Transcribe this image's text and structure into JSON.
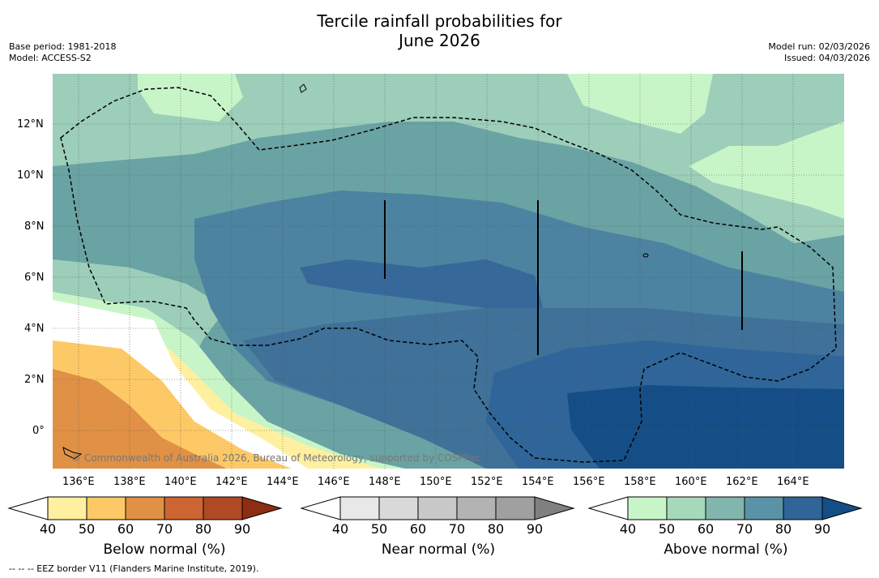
{
  "title_line1": "Tercile rainfall probabilities for",
  "title_line2": "June 2026",
  "base_period": "Base period: 1981-2018",
  "model": "Model: ACCESS-S2",
  "model_run": "Model run: 02/03/2026",
  "issued": "Issued: 04/03/2026",
  "copyright": "© Commonwealth of Australia 2026, Bureau of Meteorology, supported by COSPPac",
  "footnote": "--  --  -- EEZ border V11 (Flanders Marine Institute, 2019).",
  "lon_labels": [
    "136°E",
    "138°E",
    "140°E",
    "142°E",
    "144°E",
    "146°E",
    "148°E",
    "150°E",
    "152°E",
    "154°E",
    "156°E",
    "158°E",
    "160°E",
    "162°E",
    "164°E"
  ],
  "lat_labels": [
    "12°N",
    "10°N",
    "8°N",
    "6°N",
    "4°N",
    "2°N",
    "0°"
  ],
  "colorbars": [
    {
      "label": "Below normal (%)",
      "ticks": [
        "40",
        "50",
        "60",
        "70",
        "80",
        "90"
      ],
      "colors": [
        "#ffffff",
        "#fff0a0",
        "#fdc966",
        "#e09145",
        "#cc6433",
        "#b04a25",
        "#8c2d14"
      ]
    },
    {
      "label": "Near normal (%)",
      "ticks": [
        "40",
        "50",
        "60",
        "70",
        "80",
        "90"
      ],
      "colors": [
        "#ffffff",
        "#e8e8e8",
        "#d9d9d9",
        "#c8c8c8",
        "#b3b3b3",
        "#a0a0a0",
        "#808080"
      ]
    },
    {
      "label": "Above normal (%)",
      "ticks": [
        "40",
        "50",
        "60",
        "70",
        "80",
        "90"
      ],
      "colors": [
        "#ffffff",
        "#c8f5c8",
        "#a6d9bc",
        "#82b5ad",
        "#5a93a8",
        "#2f6598",
        "#154e86"
      ]
    }
  ]
}
